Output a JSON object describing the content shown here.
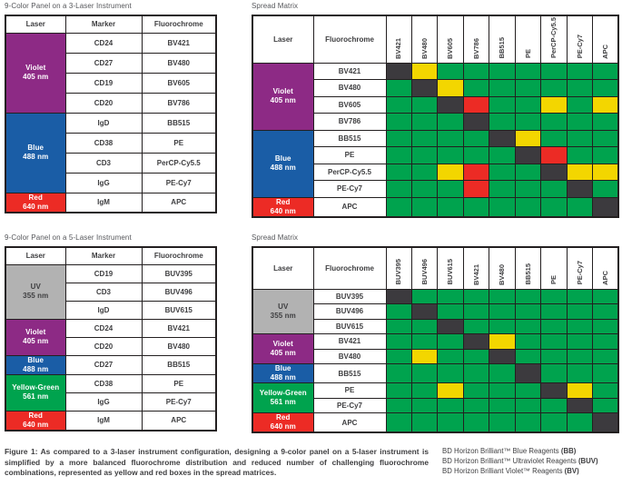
{
  "colors": {
    "green": "#00A34E",
    "yellow": "#F3D600",
    "red": "#EC2B25",
    "dark": "#3C3A3E",
    "violet": "#8D2A85",
    "blue": "#1A5DA6",
    "uv_gray": "#B2B2B2",
    "yellow_green": "#00A34E",
    "laser_red": "#EC2B25",
    "border": "#231F20",
    "text_dark": "#3E3E40",
    "title_gray": "#56575B"
  },
  "panel3": {
    "title": "9-Color Panel on a 3-Laser Instrument",
    "headers": [
      "Laser",
      "Marker",
      "Fluorochrome"
    ],
    "groups": [
      {
        "laser": "Violet",
        "wavelength": "405 nm",
        "color_key": "violet",
        "text_color": "#FFFFFF",
        "rows": [
          {
            "marker": "CD24",
            "fluorochrome": "BV421"
          },
          {
            "marker": "CD27",
            "fluorochrome": "BV480"
          },
          {
            "marker": "CD19",
            "fluorochrome": "BV605"
          },
          {
            "marker": "CD20",
            "fluorochrome": "BV786"
          }
        ]
      },
      {
        "laser": "Blue",
        "wavelength": "488 nm",
        "color_key": "blue",
        "text_color": "#FFFFFF",
        "rows": [
          {
            "marker": "IgD",
            "fluorochrome": "BB515"
          },
          {
            "marker": "CD38",
            "fluorochrome": "PE"
          },
          {
            "marker": "CD3",
            "fluorochrome": "PerCP-Cy5.5"
          },
          {
            "marker": "IgG",
            "fluorochrome": "PE-Cy7"
          }
        ]
      },
      {
        "laser": "Red",
        "wavelength": "640 nm",
        "color_key": "laser_red",
        "text_color": "#FFFFFF",
        "rows": [
          {
            "marker": "IgM",
            "fluorochrome": "APC"
          }
        ]
      }
    ]
  },
  "matrix3": {
    "title": "Spread Matrix",
    "headers": [
      "Laser",
      "Fluorochrome"
    ],
    "columns": [
      "BV421",
      "BV480",
      "BV605",
      "BV786",
      "BB515",
      "PE",
      "PerCP-Cy5.5",
      "PE-Cy7",
      "APC"
    ],
    "groups": [
      {
        "laser": "Violet",
        "wavelength": "405 nm",
        "color_key": "violet",
        "text_color": "#FFFFFF",
        "rows": [
          {
            "fluorochrome": "BV421",
            "cells": [
              "dark",
              "yellow",
              "green",
              "green",
              "green",
              "green",
              "green",
              "green",
              "green"
            ]
          },
          {
            "fluorochrome": "BV480",
            "cells": [
              "green",
              "dark",
              "yellow",
              "green",
              "green",
              "green",
              "green",
              "green",
              "green"
            ]
          },
          {
            "fluorochrome": "BV605",
            "cells": [
              "green",
              "green",
              "dark",
              "red",
              "green",
              "green",
              "yellow",
              "green",
              "yellow"
            ]
          },
          {
            "fluorochrome": "BV786",
            "cells": [
              "green",
              "green",
              "green",
              "dark",
              "green",
              "green",
              "green",
              "green",
              "green"
            ]
          }
        ]
      },
      {
        "laser": "Blue",
        "wavelength": "488 nm",
        "color_key": "blue",
        "text_color": "#FFFFFF",
        "rows": [
          {
            "fluorochrome": "BB515",
            "cells": [
              "green",
              "green",
              "green",
              "green",
              "dark",
              "yellow",
              "green",
              "green",
              "green"
            ]
          },
          {
            "fluorochrome": "PE",
            "cells": [
              "green",
              "green",
              "green",
              "green",
              "green",
              "dark",
              "red",
              "green",
              "green"
            ]
          },
          {
            "fluorochrome": "PerCP-Cy5.5",
            "cells": [
              "green",
              "green",
              "yellow",
              "red",
              "green",
              "green",
              "dark",
              "yellow",
              "yellow"
            ]
          },
          {
            "fluorochrome": "PE-Cy7",
            "cells": [
              "green",
              "green",
              "green",
              "red",
              "green",
              "green",
              "green",
              "dark",
              "green"
            ]
          }
        ]
      },
      {
        "laser": "Red",
        "wavelength": "640 nm",
        "color_key": "laser_red",
        "text_color": "#FFFFFF",
        "rows": [
          {
            "fluorochrome": "APC",
            "cells": [
              "green",
              "green",
              "green",
              "green",
              "green",
              "green",
              "green",
              "green",
              "dark"
            ]
          }
        ]
      }
    ]
  },
  "panel5": {
    "title": "9-Color Panel on a 5-Laser Instrument",
    "headers": [
      "Laser",
      "Marker",
      "Fluorochrome"
    ],
    "groups": [
      {
        "laser": "UV",
        "wavelength": "355 nm",
        "color_key": "uv_gray",
        "text_color": "#3E3E40",
        "rows": [
          {
            "marker": "CD19",
            "fluorochrome": "BUV395"
          },
          {
            "marker": "CD3",
            "fluorochrome": "BUV496"
          },
          {
            "marker": "IgD",
            "fluorochrome": "BUV615"
          }
        ]
      },
      {
        "laser": "Violet",
        "wavelength": "405 nm",
        "color_key": "violet",
        "text_color": "#FFFFFF",
        "rows": [
          {
            "marker": "CD24",
            "fluorochrome": "BV421"
          },
          {
            "marker": "CD20",
            "fluorochrome": "BV480"
          }
        ]
      },
      {
        "laser": "Blue",
        "wavelength": "488 nm",
        "color_key": "blue",
        "text_color": "#FFFFFF",
        "rows": [
          {
            "marker": "CD27",
            "fluorochrome": "BB515"
          }
        ]
      },
      {
        "laser": "Yellow-Green",
        "wavelength": "561 nm",
        "color_key": "yellow_green",
        "text_color": "#FFFFFF",
        "rows": [
          {
            "marker": "CD38",
            "fluorochrome": "PE"
          },
          {
            "marker": "IgG",
            "fluorochrome": "PE-Cy7"
          }
        ]
      },
      {
        "laser": "Red",
        "wavelength": "640 nm",
        "color_key": "laser_red",
        "text_color": "#FFFFFF",
        "rows": [
          {
            "marker": "IgM",
            "fluorochrome": "APC"
          }
        ]
      }
    ]
  },
  "matrix5": {
    "title": "Spread Matrix",
    "headers": [
      "Laser",
      "Fluorochrome"
    ],
    "columns": [
      "BUV395",
      "BUV496",
      "BUV615",
      "BV421",
      "BV480",
      "BB515",
      "PE",
      "PE-Cy7",
      "APC"
    ],
    "groups": [
      {
        "laser": "UV",
        "wavelength": "355 nm",
        "color_key": "uv_gray",
        "text_color": "#3E3E40",
        "rows": [
          {
            "fluorochrome": "BUV395",
            "cells": [
              "dark",
              "green",
              "green",
              "green",
              "green",
              "green",
              "green",
              "green",
              "green"
            ]
          },
          {
            "fluorochrome": "BUV496",
            "cells": [
              "green",
              "dark",
              "green",
              "green",
              "green",
              "green",
              "green",
              "green",
              "green"
            ]
          },
          {
            "fluorochrome": "BUV615",
            "cells": [
              "green",
              "green",
              "dark",
              "green",
              "green",
              "green",
              "green",
              "green",
              "green"
            ]
          }
        ]
      },
      {
        "laser": "Violet",
        "wavelength": "405 nm",
        "color_key": "violet",
        "text_color": "#FFFFFF",
        "rows": [
          {
            "fluorochrome": "BV421",
            "cells": [
              "green",
              "green",
              "green",
              "dark",
              "yellow",
              "green",
              "green",
              "green",
              "green"
            ]
          },
          {
            "fluorochrome": "BV480",
            "cells": [
              "green",
              "yellow",
              "green",
              "green",
              "dark",
              "green",
              "green",
              "green",
              "green"
            ]
          }
        ]
      },
      {
        "laser": "Blue",
        "wavelength": "488 nm",
        "color_key": "blue",
        "text_color": "#FFFFFF",
        "rows": [
          {
            "fluorochrome": "BB515",
            "cells": [
              "green",
              "green",
              "green",
              "green",
              "green",
              "dark",
              "green",
              "green",
              "green"
            ]
          }
        ]
      },
      {
        "laser": "Yellow-Green",
        "wavelength": "561 nm",
        "color_key": "yellow_green",
        "text_color": "#FFFFFF",
        "rows": [
          {
            "fluorochrome": "PE",
            "cells": [
              "green",
              "green",
              "yellow",
              "green",
              "green",
              "green",
              "dark",
              "yellow",
              "green"
            ]
          },
          {
            "fluorochrome": "PE-Cy7",
            "cells": [
              "green",
              "green",
              "green",
              "green",
              "green",
              "green",
              "green",
              "dark",
              "green"
            ]
          }
        ]
      },
      {
        "laser": "Red",
        "wavelength": "640 nm",
        "color_key": "laser_red",
        "text_color": "#FFFFFF",
        "rows": [
          {
            "fluorochrome": "APC",
            "cells": [
              "green",
              "green",
              "green",
              "green",
              "green",
              "green",
              "green",
              "green",
              "dark"
            ]
          }
        ]
      }
    ]
  },
  "caption": "Figure 1: As compared to a 3-laser instrument configuration, designing a 9-color panel on a 5-laser instrument is simplified by a more balanced fluorochrome distribution and reduced number of challenging fluorochrome combinations, represented as yellow and red boxes in the spread matrices.",
  "legend": [
    {
      "text": "BD Horizon Brilliant™ Blue Reagents ",
      "bold": "(BB)"
    },
    {
      "text": "BD Horizon Brilliant™ Ultraviolet Reagents ",
      "bold": "(BUV)"
    },
    {
      "text": "BD Horizon Brilliant Violet™ Reagents ",
      "bold": "(BV)"
    }
  ]
}
